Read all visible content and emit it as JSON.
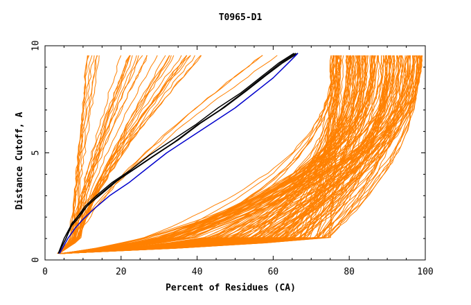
{
  "chart_data": {
    "type": "line",
    "title": "T0965-D1",
    "xlabel": "Percent of Residues (CA)",
    "ylabel": "Distance Cutoff, A",
    "xlim": [
      0,
      100
    ],
    "ylim": [
      0,
      10
    ],
    "x_ticks": [
      "0",
      "20",
      "40",
      "60",
      "80",
      "100"
    ],
    "y_ticks": [
      "0",
      "5",
      "10"
    ],
    "grid": false,
    "legend": "none",
    "colors": {
      "models": "#ff8000",
      "highlight_black": "#000000",
      "highlight_blue": "#0000cc"
    },
    "series_groups": [
      {
        "group": "steep",
        "color": "#ff8000",
        "count": 8,
        "x_at_cutoff_1": [
          6.5,
          8.5
        ],
        "x_at_cutoff_9_6": [
          11,
          15
        ]
      },
      {
        "group": "moderate",
        "color": "#ff8000",
        "count": 26,
        "x_at_cutoff_1": [
          7,
          9.5
        ],
        "x_at_cutoff_9_6": [
          20,
          42
        ]
      },
      {
        "group": "linear",
        "color": "#ff8000",
        "count": 3,
        "x_at_cutoff_1": [
          7.5,
          9
        ],
        "x_at_cutoff_9_6": [
          55,
          68
        ]
      },
      {
        "group": "flat",
        "color": "#ff8000",
        "count": 150,
        "x_at_cutoff_1": [
          25,
          75
        ],
        "x_at_cutoff_9_6": [
          75,
          99.5
        ]
      }
    ],
    "series": [
      {
        "color": "#000000",
        "x": [
          3.5,
          5.5,
          7,
          9,
          11,
          14,
          18,
          23,
          28,
          34,
          40,
          46,
          52,
          57,
          62,
          66
        ],
        "y": [
          0.3,
          1.0,
          1.6,
          2.0,
          2.5,
          3.0,
          3.6,
          4.2,
          4.8,
          5.5,
          6.3,
          7.0,
          7.8,
          8.5,
          9.2,
          9.65
        ]
      },
      {
        "color": "#000000",
        "x": [
          3.5,
          5.5,
          7,
          9,
          11.5,
          15,
          19,
          24,
          29,
          35,
          41,
          47,
          53,
          58,
          62.5,
          66.5
        ],
        "y": [
          0.3,
          1.0,
          1.7,
          2.1,
          2.6,
          3.1,
          3.7,
          4.3,
          4.9,
          5.6,
          6.4,
          7.1,
          7.9,
          8.6,
          9.2,
          9.65
        ]
      },
      {
        "color": "#000000",
        "x": [
          3.5,
          5,
          6.8,
          8.5,
          10.5,
          13.5,
          17.5,
          22.5,
          27.5,
          33.5,
          39.5,
          45.5,
          51.5,
          56.5,
          61.5,
          65.5
        ],
        "y": [
          0.3,
          1.0,
          1.6,
          2.0,
          2.5,
          3.0,
          3.6,
          4.2,
          4.9,
          5.6,
          6.3,
          7.1,
          7.8,
          8.5,
          9.2,
          9.65
        ]
      },
      {
        "color": "#0000cc",
        "x": [
          3.8,
          6,
          8,
          10,
          13,
          17,
          22,
          27,
          32,
          38,
          44,
          50,
          55,
          60,
          64,
          66.5
        ],
        "y": [
          0.3,
          1.0,
          1.5,
          1.9,
          2.4,
          3.0,
          3.6,
          4.3,
          5.0,
          5.7,
          6.4,
          7.1,
          7.8,
          8.5,
          9.2,
          9.65
        ]
      }
    ]
  }
}
